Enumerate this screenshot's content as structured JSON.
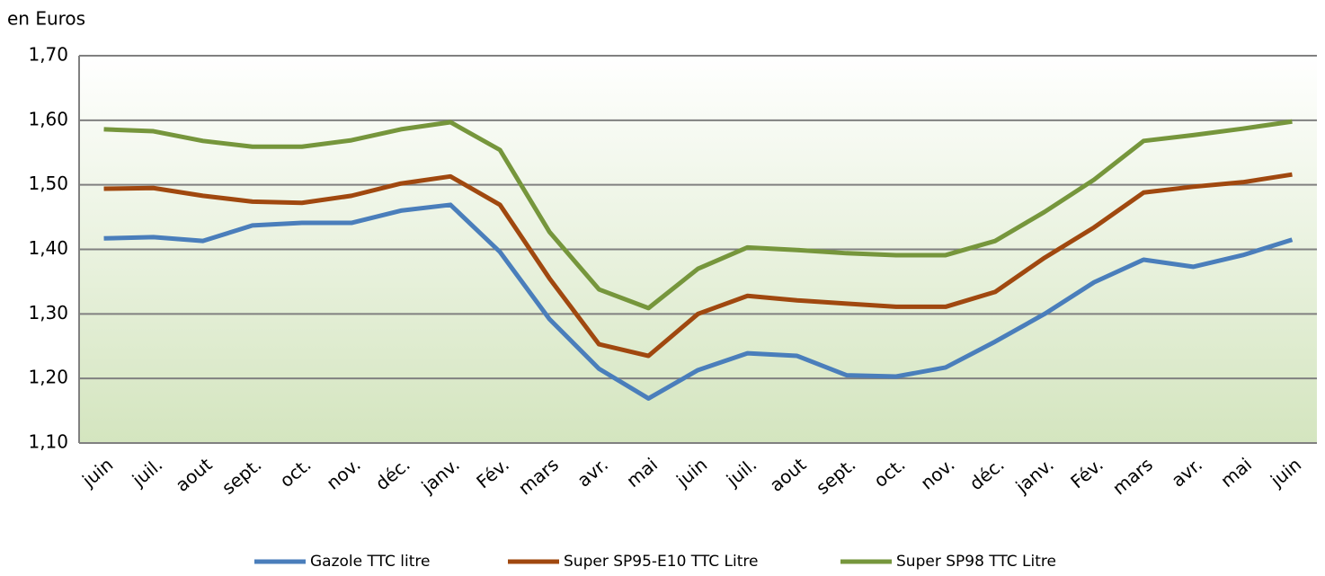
{
  "chart_data": {
    "type": "line",
    "y_label": "en Euros",
    "categories": [
      "juin",
      "juil.",
      "aout",
      "sept.",
      "oct.",
      "nov.",
      "déc.",
      "janv.",
      "Fév.",
      "mars",
      "avr.",
      "mai",
      "juin",
      "juil.",
      "aout",
      "sept.",
      "oct.",
      "nov.",
      "déc.",
      "janv.",
      "Fév.",
      "mars",
      "avr.",
      "mai",
      "juin"
    ],
    "series": [
      {
        "name": "Gazole TTC litre",
        "color": "#4a7ebb",
        "values": [
          1.417,
          1.419,
          1.413,
          1.437,
          1.441,
          1.441,
          1.46,
          1.469,
          1.396,
          1.292,
          1.215,
          1.169,
          1.213,
          1.239,
          1.235,
          1.205,
          1.203,
          1.217,
          1.257,
          1.3,
          1.349,
          1.384,
          1.373,
          1.391,
          1.415
        ]
      },
      {
        "name": "Super SP95-E10 TTC Litre",
        "color": "#a0480f",
        "values": [
          1.494,
          1.495,
          1.483,
          1.474,
          1.472,
          1.483,
          1.502,
          1.513,
          1.469,
          1.355,
          1.253,
          1.235,
          1.3,
          1.328,
          1.321,
          1.316,
          1.311,
          1.311,
          1.334,
          1.387,
          1.434,
          1.488,
          1.497,
          1.504,
          1.516
        ]
      },
      {
        "name": "Super SP98 TTC Litre",
        "color": "#76963c",
        "values": [
          1.586,
          1.583,
          1.568,
          1.559,
          1.559,
          1.569,
          1.586,
          1.597,
          1.554,
          1.427,
          1.338,
          1.309,
          1.37,
          1.403,
          1.399,
          1.394,
          1.391,
          1.391,
          1.413,
          1.458,
          1.508,
          1.568,
          1.577,
          1.587,
          1.598
        ]
      }
    ],
    "ylim": [
      1.1,
      1.7
    ],
    "yticks": [
      {
        "value": 1.1,
        "label": "1,10"
      },
      {
        "value": 1.2,
        "label": "1,20"
      },
      {
        "value": 1.3,
        "label": "1,30"
      },
      {
        "value": 1.4,
        "label": "1,40"
      },
      {
        "value": 1.5,
        "label": "1,50"
      },
      {
        "value": 1.6,
        "label": "1,60"
      },
      {
        "value": 1.7,
        "label": "1,70"
      }
    ],
    "grid": true,
    "legend": "bottom"
  }
}
